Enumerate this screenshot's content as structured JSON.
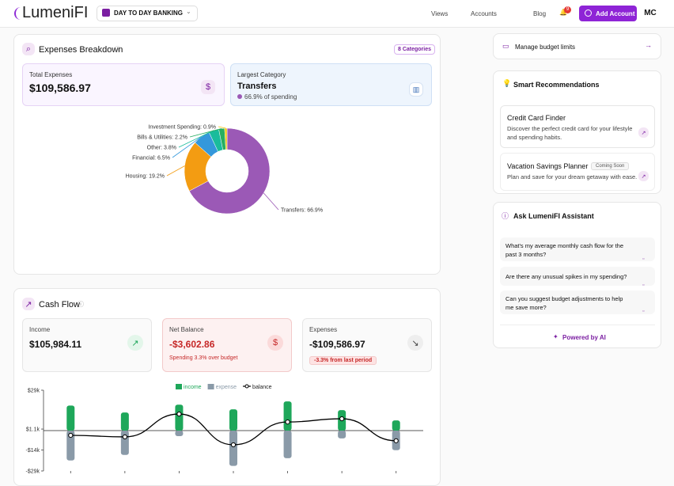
{
  "header": {
    "logo": "LumeniFI",
    "workspace": "DAY TO DAY BANKING",
    "nav": [
      "Views",
      "Accounts",
      "Blog"
    ],
    "notifications": "9",
    "add_account": "Add Account",
    "avatar": "MC"
  },
  "expenses": {
    "title": "Expenses Breakdown",
    "badge": "8 Categories",
    "total_label": "Total Expenses",
    "total": "$109,586.97",
    "largest_label": "Largest Category",
    "largest": "Transfers",
    "largest_share": "66.9% of spending"
  },
  "cash_flow": {
    "title": "Cash Flow",
    "income_label": "Income",
    "income": "$105,984.11",
    "net_label": "Net Balance",
    "net": "-$3,602.86",
    "net_note": "Spending 3.3% over budget",
    "expenses_label": "Expenses",
    "expenses": "-$109,586.97",
    "expenses_note": "-3.3% from last period"
  },
  "sidebar": {
    "budget": "Manage budget limits",
    "recommendations": {
      "title": "Smart Recommendations",
      "items": [
        {
          "title": "Credit Card Finder",
          "text": "Discover the perfect credit card for your lifestyle and spending habits."
        },
        {
          "title": "Vacation Savings Planner",
          "badge": "Coming Soon",
          "text": "Plan and save for your dream getaway with ease."
        }
      ]
    },
    "assistant": {
      "title": "Ask LumeniFI Assistant",
      "questions": [
        "What's my average monthly cash flow for the past 3 months?",
        "Are there any unusual spikes in my spending?",
        "Can you suggest budget adjustments to help me save more?"
      ],
      "footer": "Powered by AI"
    }
  },
  "chart_data": [
    {
      "type": "pie",
      "values": [
        66.9,
        19.2,
        6.5,
        3.8,
        2.2,
        0.9
      ],
      "value_labels": [
        "Transfers: 66.9%",
        "Housing: 19.2%",
        "Financial: 6.5%",
        "Other: 3.8%",
        "Bills & Utilities: 2.2%",
        "Investment Spending: 0.9%"
      ],
      "colors": [
        "#9b59b6",
        "#f39c12",
        "#3498db",
        "#1abc9c",
        "#27ae60",
        "#f1c40f"
      ],
      "donut": true
    },
    {
      "type": "bar",
      "categories": [
        null,
        null,
        null,
        null,
        null,
        null,
        null
      ],
      "series": [
        {
          "name": "income",
          "color": "#1ea75a",
          "values": [
            18000,
            13000,
            18600,
            15300,
            21000,
            14700,
            7300
          ]
        },
        {
          "name": "expense",
          "color": "#8a9aa8",
          "values": [
            -21500,
            -17500,
            -4000,
            -25400,
            -19800,
            -5600,
            -14100
          ]
        },
        {
          "name": "balance",
          "color": "#000000",
          "type": "line",
          "values": [
            -3400,
            -4500,
            11900,
            -10200,
            6200,
            8500,
            -7300
          ]
        }
      ],
      "ylim": [
        -29000,
        29000
      ],
      "yticks": [
        {
          "value": 29000,
          "label": "$29k"
        },
        {
          "value": 1100,
          "label": "$1.1k"
        },
        {
          "value": -14000,
          "label": "-$14k"
        },
        {
          "value": -29000,
          "label": "-$29k"
        }
      ],
      "grid": false
    }
  ]
}
